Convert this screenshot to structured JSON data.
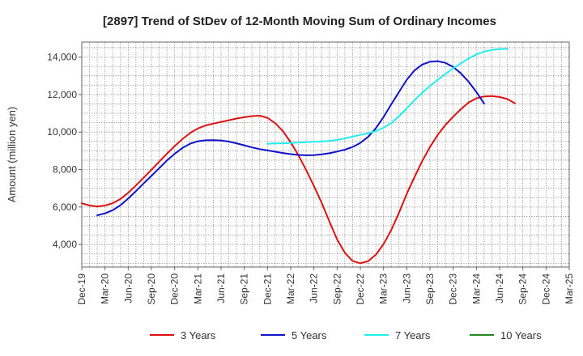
{
  "chart_data": {
    "type": "line",
    "title": "[2897]  Trend of StDev of 12-Month Moving Sum of Ordinary Incomes",
    "xlabel": "",
    "ylabel": "Amount (million yen)",
    "ylim": [
      2800,
      14800
    ],
    "yticks": [
      4000,
      6000,
      8000,
      10000,
      12000,
      14000
    ],
    "ytick_labels": [
      "4,000",
      "6,000",
      "8,000",
      "10,000",
      "12,000",
      "14,000"
    ],
    "xtick_labels": [
      "Dec-19",
      "Mar-20",
      "Jun-20",
      "Sep-20",
      "Dec-20",
      "Mar-21",
      "Jun-21",
      "Sep-21",
      "Dec-21",
      "Mar-22",
      "Jun-22",
      "Sep-22",
      "Dec-22",
      "Mar-23",
      "Jun-23",
      "Sep-23",
      "Dec-23",
      "Mar-24",
      "Jun-24",
      "Sep-24",
      "Dec-24",
      "Mar-25"
    ],
    "grid": true,
    "legend_position": "bottom",
    "series": [
      {
        "name": "3 Years",
        "color": "#dd1111",
        "start_index": 0,
        "values": [
          6200,
          6080,
          6030,
          6080,
          6200,
          6430,
          6760,
          7150,
          7560,
          7990,
          8420,
          8840,
          9250,
          9620,
          9950,
          10190,
          10350,
          10450,
          10540,
          10630,
          10720,
          10790,
          10850,
          10870,
          10760,
          10470,
          10050,
          9450,
          8760,
          7970,
          7120,
          6230,
          5230,
          4270,
          3560,
          3120,
          3000,
          3110,
          3450,
          4020,
          4770,
          5700,
          6700,
          7600,
          8450,
          9200,
          9850,
          10380,
          10820,
          11220,
          11580,
          11800,
          11900,
          11920,
          11870,
          11760,
          11530
        ]
      },
      {
        "name": "5 Years",
        "color": "#1111cc",
        "start_index": 2,
        "values": [
          5560,
          5660,
          5830,
          6100,
          6450,
          6850,
          7260,
          7660,
          8070,
          8480,
          8840,
          9150,
          9380,
          9510,
          9560,
          9570,
          9550,
          9490,
          9400,
          9290,
          9180,
          9090,
          9020,
          8950,
          8880,
          8820,
          8780,
          8760,
          8770,
          8810,
          8870,
          8960,
          9060,
          9200,
          9420,
          9740,
          10200,
          10800,
          11480,
          12140,
          12790,
          13290,
          13600,
          13750,
          13780,
          13690,
          13470,
          13130,
          12680,
          12140,
          11520
        ]
      },
      {
        "name": "7 Years",
        "color": "#22eeee",
        "start_index": 24,
        "values": [
          9370,
          9390,
          9400,
          9420,
          9440,
          9460,
          9480,
          9500,
          9520,
          9580,
          9660,
          9760,
          9850,
          9930,
          10050,
          10230,
          10480,
          10850,
          11260,
          11700,
          12100,
          12460,
          12790,
          13100,
          13400,
          13670,
          13930,
          14140,
          14290,
          14380,
          14420,
          14440
        ]
      },
      {
        "name": "10 Years",
        "color": "#228822",
        "start_index": 0,
        "values": []
      }
    ]
  }
}
